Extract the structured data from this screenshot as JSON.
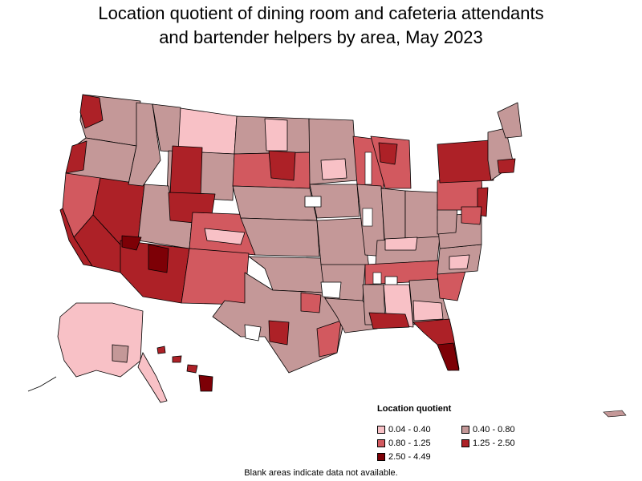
{
  "title_line1": "Location quotient of dining room and cafeteria attendants",
  "title_line2": "and bartender helpers by area, May 2023",
  "legend": {
    "title": "Location quotient",
    "items": [
      {
        "label": "0.04 - 0.40",
        "color": "#f8c1c6"
      },
      {
        "label": "0.40 - 0.80",
        "color": "#c49898"
      },
      {
        "label": "0.80 - 1.25",
        "color": "#d2595f"
      },
      {
        "label": "1.25 - 2.50",
        "color": "#ad2127"
      },
      {
        "label": "2.50 - 4.49",
        "color": "#7d0006"
      }
    ]
  },
  "footnote": "Blank areas indicate data not available.",
  "colors": {
    "border": "#000000",
    "blank": "#ffffff"
  }
}
